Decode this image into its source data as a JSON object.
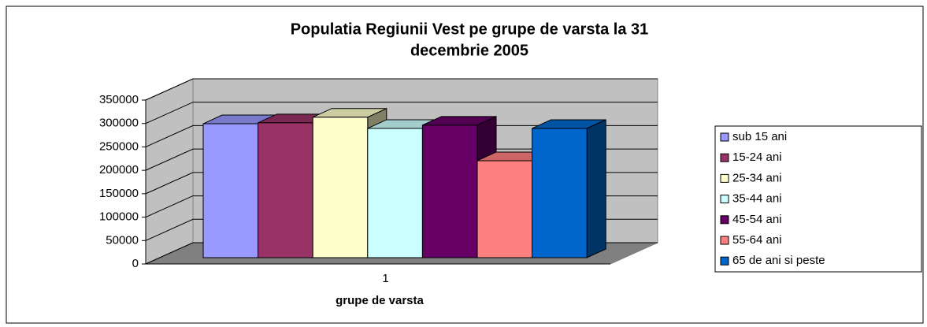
{
  "chart_data": {
    "type": "bar3d",
    "title": [
      "Populatia Regiunii Vest pe grupe de varsta la 31",
      "decembrie 2005"
    ],
    "x_label": "grupe de varsta",
    "categories": [
      "1"
    ],
    "series": [
      {
        "name": "sub 15 ani",
        "color": "#9999ff",
        "values": [
          286000
        ]
      },
      {
        "name": "15-24 ani",
        "color": "#993366",
        "values": [
          288000
        ]
      },
      {
        "name": "25-34 ani",
        "color": "#ffffcc",
        "values": [
          300000
        ]
      },
      {
        "name": "35-44 ani",
        "color": "#ccffff",
        "values": [
          276000
        ]
      },
      {
        "name": "45-54 ani",
        "color": "#660066",
        "values": [
          283000
        ]
      },
      {
        "name": "55-64 ani",
        "color": "#ff8080",
        "values": [
          207000
        ]
      },
      {
        "name": "65 de ani si peste",
        "color": "#0066cc",
        "values": [
          276000
        ]
      }
    ],
    "ylim": [
      0,
      350000
    ],
    "yticks": [
      0,
      50000,
      100000,
      150000,
      200000,
      250000,
      300000,
      350000
    ],
    "grid": true,
    "legend": "right"
  }
}
